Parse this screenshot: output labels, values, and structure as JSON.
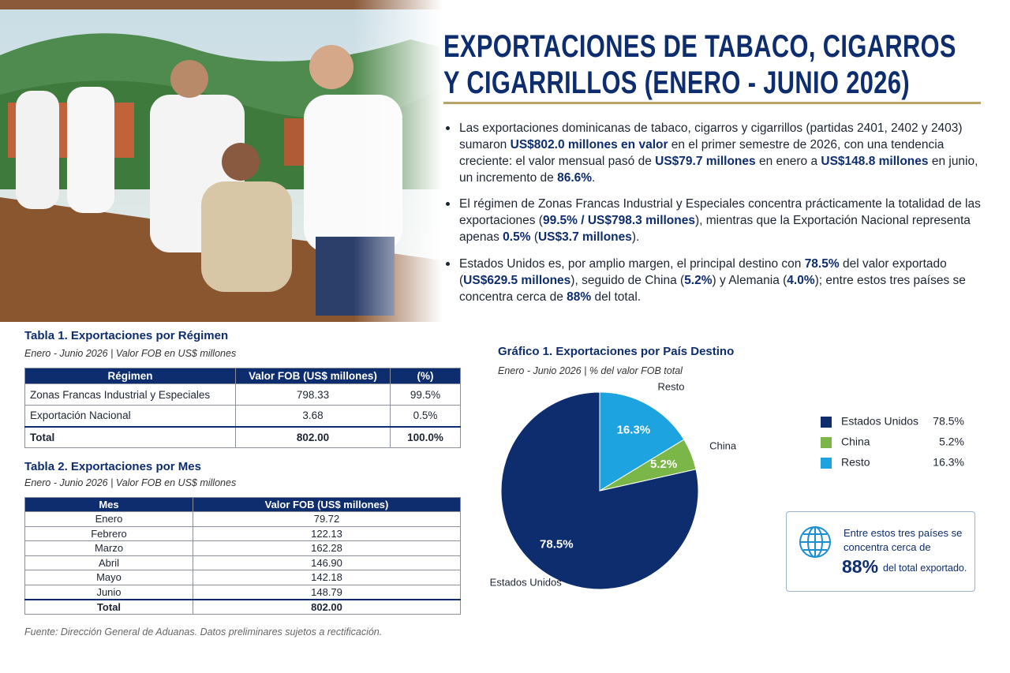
{
  "header": {
    "title": "EXPORTACIONES DE TABACO, CIGARROS Y CIGARRILLOS (ENERO - JUNIO 2026)"
  },
  "bullets": [
    [
      "Las exportaciones dominicanas de tabaco, cigarros y cigarrillos (partidas 2401, 2402 y 2403) sumaron ",
      "US$802.0 millones en valor",
      " en el primer semestre de 2026, con una tendencia creciente: el valor mensual pasó de ",
      "US$79.7 millones",
      " en enero a ",
      "US$148.8 millones",
      " en junio, un incremento de ",
      "86.6%",
      "."
    ],
    [
      "El régimen de Zonas Francas Industrial y Especiales concentra prácticamente la totalidad de las exportaciones (",
      "99.5% / US$798.3 millones",
      "), mientras que la Exportación Nacional representa apenas ",
      "0.5%",
      " (",
      "US$3.7 millones",
      ")."
    ],
    [
      "Estados Unidos es, por amplio margen, el principal destino con ",
      "78.5%",
      " del valor exportado (",
      "US$629.5 millones",
      "), seguido de China (",
      "5.2%",
      ") y Alemania (",
      "4.0%",
      "); entre estos tres países se concentra cerca de ",
      "88%",
      " del total."
    ]
  ],
  "table1": {
    "title": "Tabla 1. Exportaciones por Régimen",
    "subtitle": "Enero - Junio 2026 | Valor FOB en US$ millones",
    "columns": [
      "Régimen",
      "Valor FOB (US$ millones)",
      "(%)"
    ],
    "rows": [
      [
        "Zonas Francas Industrial y Especiales",
        "798.33",
        "99.5%"
      ],
      [
        "Exportación Nacional",
        "3.68",
        "0.5%"
      ],
      [
        "Total",
        "802.00",
        "100.0%"
      ]
    ]
  },
  "table2": {
    "title": "Tabla 2. Exportaciones por Mes",
    "subtitle": "Enero - Junio 2026 | Valor FOB en US$ millones",
    "columns": [
      "Mes",
      "Valor FOB (US$ millones)"
    ],
    "rows": [
      [
        "Enero",
        "79.72"
      ],
      [
        "Febrero",
        "122.13"
      ],
      [
        "Marzo",
        "162.28"
      ],
      [
        "Abril",
        "146.90"
      ],
      [
        "Mayo",
        "142.18"
      ],
      [
        "Junio",
        "148.79"
      ],
      [
        "Total",
        "802.00"
      ]
    ]
  },
  "chart_data": {
    "type": "pie",
    "title": "Gráfico 1. Exportaciones por País Destino",
    "subtitle": "Enero - Junio 2026 | % del valor FOB total",
    "categories": [
      "Estados Unidos",
      "China",
      "Resto"
    ],
    "values": [
      78.5,
      5.2,
      16.3
    ],
    "value_labels": [
      "78.5%",
      "5.2%",
      "16.3%"
    ],
    "colors": [
      "#0d2d6e",
      "#7ab648",
      "#1ca3e0"
    ]
  },
  "callout": {
    "text": "Entre estos tres países se concentra cerca de",
    "highlight": "88%",
    "suffix": "del total exportado."
  },
  "source": "Fuente:  Dirección General de Aduanas. Datos preliminares sujetos a rectificación."
}
